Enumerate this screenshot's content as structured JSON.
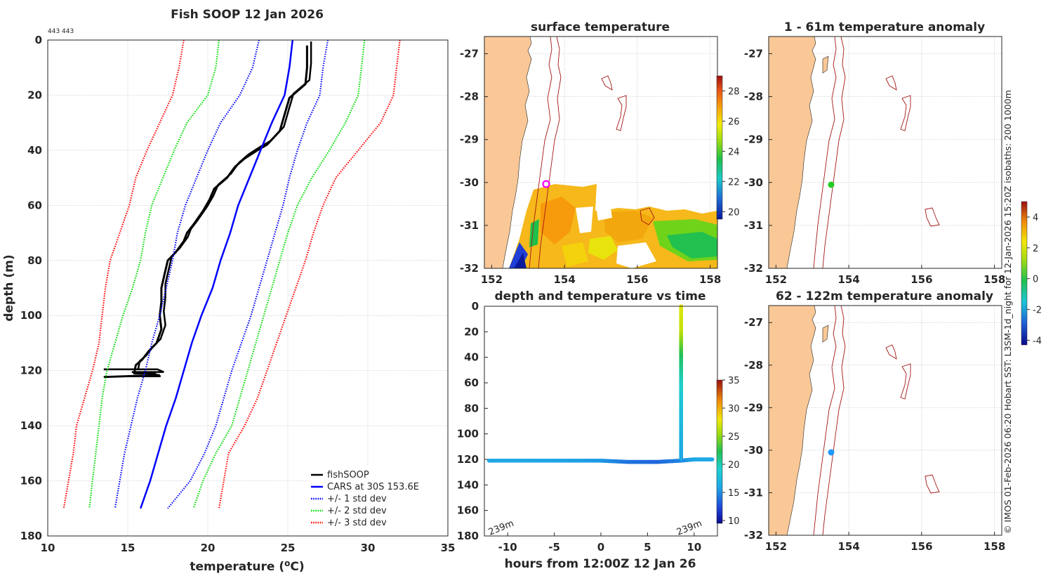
{
  "chart_data": [
    {
      "type": "line",
      "title": "Fish SOOP 12 Jan 2026",
      "header_note": "443 443",
      "xlabel": "temperature (°C)",
      "xlabel_text": "temperature (",
      "xlabel_sup": "o",
      "xlabel_unit": "C)",
      "ylabel": "depth (m)",
      "xlim": [
        10,
        35
      ],
      "ylim": [
        0,
        180
      ],
      "x_ticks": [
        "10",
        "15",
        "20",
        "25",
        "30",
        "35"
      ],
      "y_ticks": [
        "0",
        "20",
        "40",
        "60",
        "80",
        "100",
        "120",
        "140",
        "160",
        "180"
      ],
      "legend_position": "bottom-right",
      "legend": [
        "fishSOOP",
        "CARS at 30S 153.6E",
        "+/- 1 std dev",
        "+/- 2 std dev",
        "+/- 3 std dev"
      ],
      "series": [
        {
          "name": "fishSOOP",
          "color": "#000000",
          "temperature": [
            26.2,
            26.2,
            26.1,
            25.1,
            24.8,
            24.5,
            23.7,
            23.1,
            22.3,
            21.7,
            21.2,
            20.4,
            20.1,
            19.7,
            19.1,
            18.7,
            18.5,
            18.0,
            17.5,
            17.3,
            17.1,
            17.1,
            17.0,
            17.1,
            16.8,
            16.3,
            15.9,
            15.5,
            15.4,
            15.7,
            16.6,
            17.0,
            16.8,
            16.0,
            15.0
          ],
          "depth": [
            2,
            10,
            16,
            21,
            27,
            33,
            38,
            40,
            43,
            46,
            50,
            54,
            58,
            62,
            67,
            70,
            73,
            77,
            80,
            85,
            90,
            95,
            100,
            105,
            110,
            113,
            116,
            118,
            121,
            121,
            121,
            122,
            122,
            122,
            122
          ]
        },
        {
          "name": "CARS at 30S 153.6E",
          "color": "#0000ff",
          "temperature": [
            25.3,
            25.1,
            24.8,
            24.0,
            23.3,
            22.6,
            21.9,
            21.4,
            20.8,
            20.3,
            19.6,
            19.0,
            18.5,
            18.0,
            17.4,
            16.9,
            16.4,
            15.8
          ],
          "depth": [
            0,
            10,
            20,
            30,
            40,
            50,
            60,
            70,
            80,
            90,
            100,
            110,
            120,
            130,
            140,
            150,
            160,
            170
          ]
        },
        {
          "name": "-1 std dev",
          "color": "#0000ff",
          "dash": true,
          "temperature": [
            23.2,
            22.8,
            22.0,
            20.8,
            20.0,
            19.3,
            18.6,
            18.1,
            17.8,
            17.4,
            17.0,
            16.5,
            16.1,
            15.6,
            15.2,
            14.8,
            14.5,
            14.2
          ],
          "depth": [
            0,
            10,
            20,
            30,
            40,
            50,
            60,
            70,
            80,
            90,
            100,
            110,
            120,
            130,
            140,
            150,
            160,
            170
          ]
        },
        {
          "name": "+1 std dev",
          "color": "#0000ff",
          "dash": true,
          "temperature": [
            27.5,
            27.2,
            27.0,
            26.2,
            25.6,
            25.1,
            24.7,
            24.2,
            23.7,
            23.2,
            22.7,
            22.1,
            21.5,
            21.0,
            20.5,
            19.8,
            18.9,
            17.5
          ],
          "depth": [
            0,
            10,
            20,
            30,
            40,
            50,
            60,
            70,
            80,
            90,
            100,
            110,
            120,
            130,
            140,
            150,
            160,
            170
          ]
        },
        {
          "name": "-2 std dev",
          "color": "#00dd00",
          "dash": true,
          "temperature": [
            20.7,
            20.5,
            20.0,
            18.7,
            17.9,
            17.2,
            16.5,
            16.1,
            15.8,
            15.3,
            14.7,
            14.2,
            13.7,
            13.4,
            13.2,
            13.0,
            12.8,
            12.6
          ],
          "depth": [
            0,
            10,
            20,
            30,
            40,
            50,
            60,
            70,
            80,
            90,
            100,
            110,
            120,
            130,
            140,
            150,
            160,
            170
          ]
        },
        {
          "name": "+2 std dev",
          "color": "#00dd00",
          "dash": true,
          "temperature": [
            29.8,
            29.6,
            29.4,
            28.6,
            27.6,
            26.5,
            25.6,
            25.0,
            24.5,
            24.0,
            23.5,
            23.0,
            22.5,
            22.0,
            21.5,
            20.5,
            19.7,
            19.1
          ],
          "depth": [
            0,
            10,
            20,
            30,
            40,
            50,
            60,
            70,
            80,
            90,
            100,
            110,
            120,
            130,
            140,
            150,
            160,
            170
          ]
        },
        {
          "name": "-3 std dev",
          "color": "#ff0000",
          "dash": true,
          "temperature": [
            18.5,
            18.2,
            17.8,
            17.0,
            16.2,
            15.5,
            15.1,
            14.5,
            13.9,
            13.6,
            13.4,
            13.2,
            12.8,
            12.3,
            11.8,
            11.6,
            11.3,
            11.0
          ],
          "depth": [
            0,
            10,
            20,
            30,
            40,
            50,
            60,
            70,
            80,
            90,
            100,
            110,
            120,
            130,
            140,
            150,
            160,
            170
          ]
        },
        {
          "name": "+3 std dev",
          "color": "#ff0000",
          "dash": true,
          "temperature": [
            32.0,
            31.8,
            31.6,
            30.8,
            29.4,
            28.0,
            27.2,
            26.6,
            26.1,
            25.5,
            24.9,
            24.3,
            23.7,
            23.1,
            22.3,
            21.3,
            21.0,
            20.7
          ],
          "depth": [
            0,
            10,
            20,
            30,
            40,
            50,
            60,
            70,
            80,
            90,
            100,
            110,
            120,
            130,
            140,
            150,
            160,
            170
          ]
        }
      ]
    },
    {
      "type": "heatmap",
      "title": "surface temperature",
      "xlim": [
        151.8,
        158.2
      ],
      "ylim": [
        -32,
        -26.6
      ],
      "x_ticks": [
        "152",
        "154",
        "156",
        "158"
      ],
      "y_ticks": [
        "-27",
        "-28",
        "-29",
        "-30",
        "-31",
        "-32"
      ],
      "colorbar": {
        "min": 19.5,
        "max": 29.0,
        "ticks": [
          "20",
          "22",
          "24",
          "26",
          "28"
        ]
      },
      "station": {
        "lon": 153.6,
        "lat": -30.0,
        "marker": "magenta ring"
      }
    },
    {
      "type": "scatter",
      "title": "depth and temperature vs time",
      "xlabel": "hours from 12:00Z 12 Jan 26",
      "xlim": [
        -12.5,
        12.5
      ],
      "ylim": [
        0,
        180
      ],
      "x_ticks": [
        "-10",
        "-5",
        "0",
        "5",
        "10"
      ],
      "y_ticks": [
        "0",
        "20",
        "40",
        "60",
        "80",
        "100",
        "120",
        "140",
        "160",
        "180"
      ],
      "annotations": [
        "239m",
        "239m"
      ],
      "colorbar": {
        "min": 9.5,
        "max": 35,
        "ticks": [
          "10",
          "15",
          "20",
          "25",
          "30",
          "35"
        ]
      },
      "series": [
        {
          "name": "bottom track",
          "hours": [
            -12.0,
            -8.0,
            -4.0,
            0.0,
            3.0,
            6.0,
            8.5,
            10.0,
            12.0
          ],
          "depth": [
            121,
            121,
            121,
            121,
            122,
            122,
            121,
            120,
            120
          ],
          "temperature": [
            16.0,
            16.0,
            15.8,
            15.4,
            14.0,
            13.5,
            14.6,
            16.0,
            16.0
          ]
        },
        {
          "name": "profile",
          "hours": [
            8.6,
            8.6,
            8.6,
            8.6,
            8.6,
            8.6,
            8.6
          ],
          "depth": [
            0,
            20,
            40,
            60,
            80,
            100,
            120
          ],
          "temperature": [
            27.5,
            26.5,
            22.0,
            19.5,
            18.0,
            17.0,
            16.0
          ]
        }
      ]
    },
    {
      "type": "heatmap",
      "title": "1 - 61m temperature anomaly",
      "xlim": [
        151.8,
        158.2
      ],
      "ylim": [
        -32,
        -26.6
      ],
      "x_ticks": [
        "152",
        "154",
        "156",
        "158"
      ],
      "y_ticks": [
        "-27",
        "-28",
        "-29",
        "-30",
        "-31",
        "-32"
      ],
      "station": {
        "lon": 153.6,
        "lat": -30.0,
        "color": "#22cc22"
      }
    },
    {
      "type": "heatmap",
      "title": "62 - 122m temperature anomaly",
      "xlim": [
        151.8,
        158.2
      ],
      "ylim": [
        -32,
        -26.6
      ],
      "x_ticks": [
        "152",
        "154",
        "156",
        "158"
      ],
      "y_ticks": [
        "-27",
        "-28",
        "-29",
        "-30",
        "-31",
        "-32"
      ],
      "station": {
        "lon": 153.6,
        "lat": -30.0,
        "color": "#2299ff"
      },
      "colorbar": {
        "min": -4.3,
        "max": 5.0,
        "ticks": [
          "4",
          "2",
          "0",
          "-2",
          "-4"
        ]
      }
    }
  ],
  "credit": "© IMOS 01-Feb-2026 06:20 Hobart SST: L3SM-1d_night for 12-Jan-2026 15:20Z isobaths: 200  1000m"
}
